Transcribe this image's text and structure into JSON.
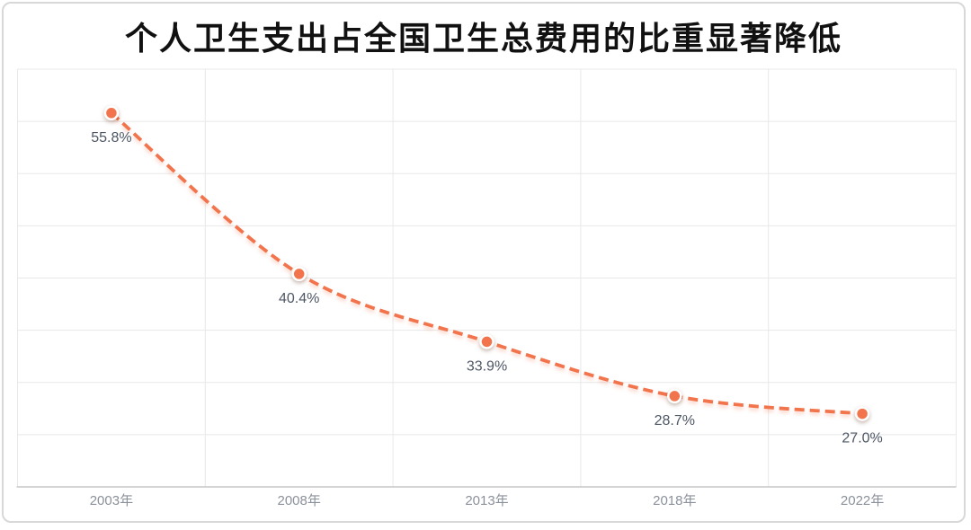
{
  "card": {
    "background": "#ffffff",
    "border_color": "#d8d8d8"
  },
  "chart_data": {
    "type": "line",
    "title": "个人卫生支出占全国卫生总费用的比重显著降低",
    "categories": [
      "2003年",
      "2008年",
      "2013年",
      "2018年",
      "2022年"
    ],
    "values": [
      55.8,
      40.4,
      33.9,
      28.7,
      27.0
    ],
    "data_labels": [
      "55.8%",
      "40.4%",
      "33.9%",
      "28.7%",
      "27.0%"
    ],
    "ylim": [
      20,
      60
    ],
    "y_gridline_step": 5,
    "grid": true,
    "legend": "none",
    "line_style": "dashed-smooth",
    "colors": {
      "line": "#F2744C",
      "marker_fill": "#F2744C",
      "marker_ring": "#FFFFFF",
      "data_label": "#4E5765",
      "axis_label": "#8B919A",
      "gridline": "#E8E8E8",
      "axis_line": "#C6C6C6",
      "title": "#111111"
    }
  }
}
